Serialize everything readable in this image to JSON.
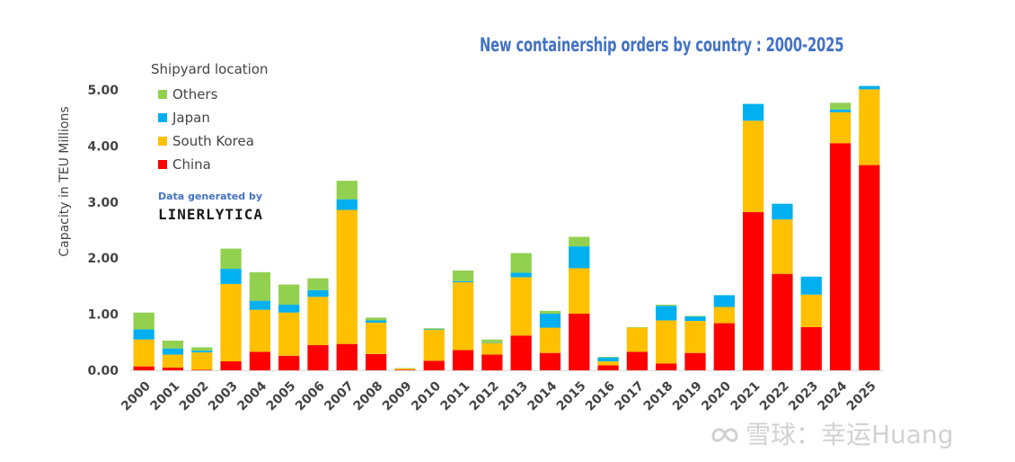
{
  "chart_data": {
    "type": "bar",
    "stacked": true,
    "title": "New containership orders by country : 2000-2025",
    "ylabel": "Capacity in TEU Millions",
    "xlabel": "",
    "ylim": [
      0,
      5
    ],
    "yticks": [
      "0.00",
      "1.00",
      "2.00",
      "3.00",
      "4.00",
      "5.00"
    ],
    "grid": false,
    "legend_title": "Shipyard location",
    "legend_position": "top-left",
    "categories": [
      "2000",
      "2001",
      "2002",
      "2003",
      "2004",
      "2005",
      "2006",
      "2007",
      "2008",
      "2009",
      "2010",
      "2011",
      "2012",
      "2013",
      "2014",
      "2015",
      "2016",
      "2017",
      "2018",
      "2019",
      "2020",
      "2021",
      "2022",
      "2023",
      "2024",
      "2025"
    ],
    "series": [
      {
        "name": "China",
        "color": "#ff0000",
        "values": [
          0.07,
          0.05,
          0.01,
          0.16,
          0.33,
          0.26,
          0.45,
          0.47,
          0.29,
          0.01,
          0.17,
          0.36,
          0.28,
          0.62,
          0.31,
          1.01,
          0.09,
          0.33,
          0.12,
          0.31,
          0.84,
          2.82,
          1.72,
          0.77,
          4.05,
          3.66
        ]
      },
      {
        "name": "South Korea",
        "color": "#ffc000",
        "values": [
          0.48,
          0.23,
          0.31,
          1.38,
          0.75,
          0.77,
          0.86,
          2.39,
          0.56,
          0.02,
          0.55,
          1.21,
          0.21,
          1.04,
          0.45,
          0.81,
          0.07,
          0.43,
          0.77,
          0.57,
          0.29,
          1.63,
          0.97,
          0.58,
          0.55,
          1.35
        ]
      },
      {
        "name": "Japan",
        "color": "#00b0f0",
        "values": [
          0.18,
          0.11,
          0.03,
          0.27,
          0.16,
          0.14,
          0.12,
          0.19,
          0.04,
          0.0,
          0.01,
          0.02,
          0.01,
          0.08,
          0.25,
          0.39,
          0.07,
          0.0,
          0.26,
          0.08,
          0.21,
          0.3,
          0.28,
          0.32,
          0.05,
          0.06
        ]
      },
      {
        "name": "Others",
        "color": "#92d050",
        "values": [
          0.3,
          0.14,
          0.06,
          0.36,
          0.51,
          0.36,
          0.21,
          0.33,
          0.05,
          0.01,
          0.02,
          0.19,
          0.05,
          0.35,
          0.05,
          0.17,
          0.01,
          0.01,
          0.02,
          0.01,
          0.0,
          0.0,
          0.0,
          0.0,
          0.12,
          0.0
        ]
      }
    ]
  },
  "branding": {
    "data_generated_by": "Data generated by",
    "brand_name": "LINERLYTICA"
  },
  "watermark": {
    "text": "雪球：幸运Huang"
  }
}
